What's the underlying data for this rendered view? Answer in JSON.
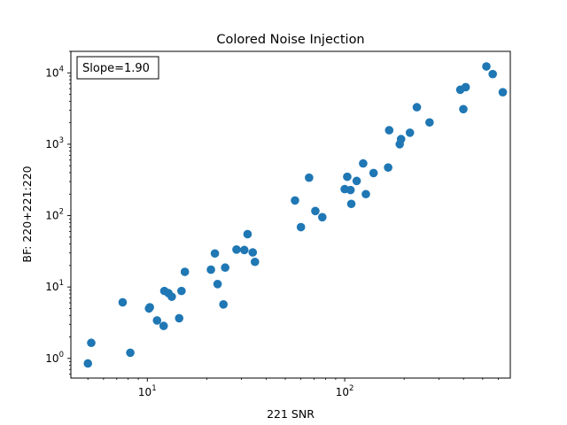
{
  "chart_data": {
    "type": "scatter",
    "title": "Colored Noise Injection",
    "xlabel": "221 SNR",
    "ylabel": "BF: 220+221:220",
    "annotation": "Slope=1.90",
    "x_scale": "log",
    "y_scale": "log",
    "xlim": [
      4.1,
      690
    ],
    "ylim": [
      0.53,
      20000
    ],
    "x_ticks": [
      {
        "value": 10,
        "base": "10",
        "exp": "1"
      },
      {
        "value": 100,
        "base": "10",
        "exp": "2"
      }
    ],
    "y_ticks": [
      {
        "value": 1,
        "base": "10",
        "exp": "0"
      },
      {
        "value": 10,
        "base": "10",
        "exp": "1"
      },
      {
        "value": 100,
        "base": "10",
        "exp": "2"
      },
      {
        "value": 1000,
        "base": "10",
        "exp": "3"
      },
      {
        "value": 10000,
        "base": "10",
        "exp": "4"
      }
    ],
    "grid": false,
    "marker_color": "#1f77b4",
    "points": [
      {
        "x": 5.0,
        "y": 0.85
      },
      {
        "x": 5.2,
        "y": 1.65
      },
      {
        "x": 7.5,
        "y": 6.1
      },
      {
        "x": 8.2,
        "y": 1.2
      },
      {
        "x": 10.2,
        "y": 5.0
      },
      {
        "x": 10.3,
        "y": 5.2
      },
      {
        "x": 11.2,
        "y": 3.4
      },
      {
        "x": 12.1,
        "y": 2.85
      },
      {
        "x": 12.2,
        "y": 8.8
      },
      {
        "x": 12.8,
        "y": 8.2
      },
      {
        "x": 13.3,
        "y": 7.3
      },
      {
        "x": 14.5,
        "y": 3.65
      },
      {
        "x": 14.9,
        "y": 8.8
      },
      {
        "x": 15.5,
        "y": 16.3
      },
      {
        "x": 21.0,
        "y": 17.5
      },
      {
        "x": 22.0,
        "y": 29.5
      },
      {
        "x": 22.7,
        "y": 11.0
      },
      {
        "x": 24.3,
        "y": 5.7
      },
      {
        "x": 24.8,
        "y": 18.7
      },
      {
        "x": 28.3,
        "y": 33.5
      },
      {
        "x": 31.0,
        "y": 33.0
      },
      {
        "x": 32.2,
        "y": 55.0
      },
      {
        "x": 34.2,
        "y": 30.5
      },
      {
        "x": 35.1,
        "y": 22.5
      },
      {
        "x": 56.0,
        "y": 163
      },
      {
        "x": 60.0,
        "y": 69
      },
      {
        "x": 66.0,
        "y": 340
      },
      {
        "x": 71.0,
        "y": 116
      },
      {
        "x": 77.0,
        "y": 95
      },
      {
        "x": 100.0,
        "y": 235
      },
      {
        "x": 103.0,
        "y": 350
      },
      {
        "x": 107.0,
        "y": 228
      },
      {
        "x": 108.0,
        "y": 146
      },
      {
        "x": 115.0,
        "y": 306
      },
      {
        "x": 124.0,
        "y": 538
      },
      {
        "x": 128.0,
        "y": 200
      },
      {
        "x": 140.0,
        "y": 395
      },
      {
        "x": 166.0,
        "y": 472
      },
      {
        "x": 168.0,
        "y": 1570
      },
      {
        "x": 190.0,
        "y": 1000
      },
      {
        "x": 193.0,
        "y": 1180
      },
      {
        "x": 214.0,
        "y": 1450
      },
      {
        "x": 232.0,
        "y": 3300
      },
      {
        "x": 269.0,
        "y": 2020
      },
      {
        "x": 385.0,
        "y": 5800
      },
      {
        "x": 399.0,
        "y": 3100
      },
      {
        "x": 410.0,
        "y": 6300
      },
      {
        "x": 522.0,
        "y": 12300
      },
      {
        "x": 562.0,
        "y": 9600
      },
      {
        "x": 632.0,
        "y": 5350
      }
    ]
  }
}
